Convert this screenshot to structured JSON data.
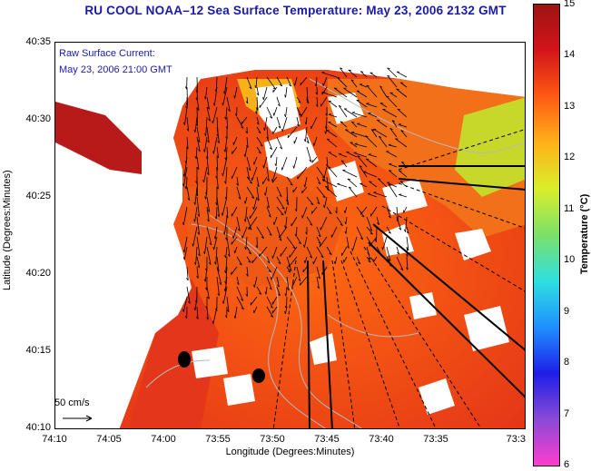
{
  "title": "RU COOL  NOAA–12  Sea Surface Temperature:  May 23, 2006 2132 GMT",
  "legend": {
    "line1": "Raw Surface Current:",
    "line2": "May 23, 2006 21:00 GMT"
  },
  "scale_label": "50 cm/s",
  "axes": {
    "xlabel": "Longitude (Degrees:Minutes)",
    "ylabel": "Latitude (Degrees:Minutes)",
    "x_ticks": [
      "74:10",
      "74:05",
      "74:00",
      "73:55",
      "73:50",
      "73:45",
      "73:40",
      "73:35",
      "73:3"
    ],
    "y_ticks": [
      "40:35",
      "40:30",
      "40:25",
      "40:20",
      "40:15",
      "40:10"
    ]
  },
  "colorbar": {
    "title": "Temperature (°C)",
    "ticks": [
      "15",
      "14",
      "13",
      "12",
      "11",
      "10",
      "9",
      "8",
      "7",
      "6"
    ],
    "range": [
      6,
      15
    ],
    "colors": [
      "#ff3ccf",
      "#8a4bd6",
      "#1e1ee6",
      "#1f8fff",
      "#2ee0e0",
      "#7be06a",
      "#d8ef2a",
      "#ffb21a",
      "#ff5a12",
      "#d4141a",
      "#9c1414"
    ]
  },
  "map": {
    "colors": {
      "ocean_mid": "#f05a18",
      "ocean_warm": "#e33014",
      "ocean_hot": "#c81818",
      "ocean_cool": "#ff9a1a",
      "land": "#ffffff",
      "arrow": "#000000",
      "contour": "#b8b8b8"
    }
  }
}
